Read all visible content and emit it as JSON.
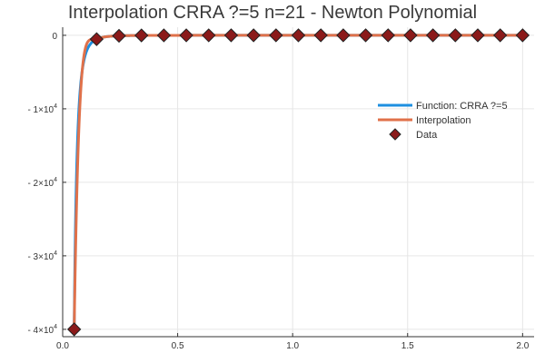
{
  "chart_data": {
    "type": "line",
    "title": "Interpolation CRRA ?=5 n=21 - Newton Polynomial",
    "xlabel": "",
    "ylabel": "",
    "xlim": [
      0.0,
      2.05
    ],
    "ylim": [
      -41000,
      1100
    ],
    "grid": true,
    "legend_position": "right",
    "x_ticks": [
      {
        "value": 0.0,
        "label": "0.0"
      },
      {
        "value": 0.5,
        "label": "0.5"
      },
      {
        "value": 1.0,
        "label": "1.0"
      },
      {
        "value": 1.5,
        "label": "1.5"
      },
      {
        "value": 2.0,
        "label": "2.0"
      }
    ],
    "y_ticks": [
      {
        "value": 0,
        "label": "0",
        "exponent": ""
      },
      {
        "value": -10000,
        "label": "- 1×10",
        "exponent": "4"
      },
      {
        "value": -20000,
        "label": "- 2×10",
        "exponent": "4"
      },
      {
        "value": -30000,
        "label": "- 3×10",
        "exponent": "4"
      },
      {
        "value": -40000,
        "label": "- 4×10",
        "exponent": "4"
      }
    ],
    "series": [
      {
        "name": "Function: CRRA ?=5",
        "kind": "line",
        "color": "#1e8fe0",
        "function": "crra",
        "gamma": 5,
        "domain": [
          0.05,
          2.0
        ]
      },
      {
        "name": "Interpolation",
        "kind": "line",
        "color": "#e0714a",
        "function": "interpolation",
        "domain": [
          0.05,
          2.0
        ]
      },
      {
        "name": "Data",
        "kind": "scatter",
        "color": "#8b1a1a",
        "marker": "diamond",
        "x": [
          0.05,
          0.1475,
          0.245,
          0.3425,
          0.44,
          0.5375,
          0.635,
          0.7325,
          0.83,
          0.9275,
          1.025,
          1.1225,
          1.22,
          1.3175,
          1.415,
          1.5125,
          1.61,
          1.7075,
          1.805,
          1.9025,
          2.0
        ],
        "y": [
          -40000,
          -525,
          -69,
          -16,
          -5,
          -2,
          -1,
          -0.4,
          -0.2,
          -0.1,
          -0.1,
          0,
          0,
          0,
          0,
          0,
          0,
          0,
          0,
          0,
          0
        ]
      }
    ]
  }
}
